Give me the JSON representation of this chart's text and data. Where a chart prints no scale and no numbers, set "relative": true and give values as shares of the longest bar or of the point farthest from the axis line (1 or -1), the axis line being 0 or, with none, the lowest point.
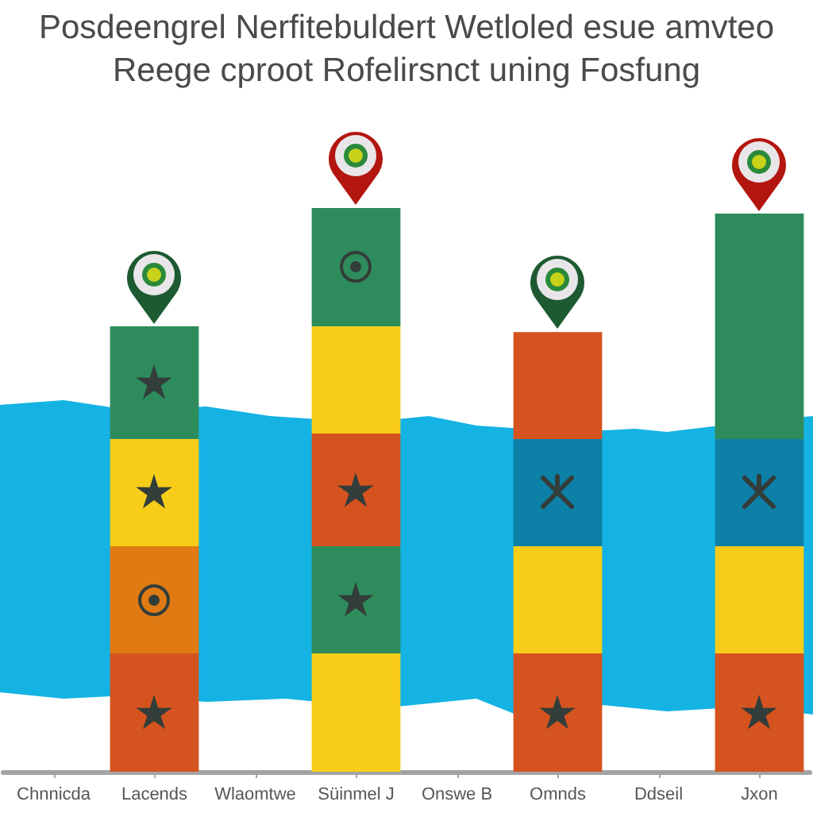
{
  "chart_data": {
    "type": "bar",
    "title": "Posdeengrel Nerfitebuldert Wetloled esue amvteo",
    "subtitle": "Reege cproot Rofelirsnct uning Fosfung",
    "categories": [
      "Chnnicda",
      "Lacends",
      "Wlaomtwe",
      "Süinmel J",
      "Onswe B",
      "Omnds",
      "Ddseil",
      "Jxon"
    ],
    "stacked": true,
    "relative": true,
    "series": [
      {
        "values": [
          null,
          0.21,
          null,
          0.21,
          null,
          0.21,
          null,
          0.21
        ],
        "colors": [
          null,
          "#d5531f",
          null,
          "#f7cd1a",
          null,
          "#d5531f",
          null,
          "#d5531f"
        ]
      },
      {
        "values": [
          null,
          0.19,
          null,
          0.19,
          null,
          0.19,
          null,
          0.19
        ],
        "colors": [
          null,
          "#e07a12",
          null,
          "#2e8c5c",
          null,
          "#f7cd1a",
          null,
          "#f7cd1a"
        ]
      },
      {
        "values": [
          null,
          0.19,
          null,
          0.2,
          null,
          0.19,
          null,
          0.19
        ],
        "colors": [
          null,
          "#f7cd1a",
          null,
          "#d5531f",
          null,
          "#0d80a8",
          null,
          "#0d80a8"
        ]
      },
      {
        "values": [
          null,
          0.2,
          null,
          0.19,
          null,
          0.19,
          null,
          0.2
        ],
        "colors": [
          null,
          "#2e8c5c",
          null,
          "#f7cd1a",
          null,
          "#d5531f",
          null,
          "#2e8c5c"
        ]
      },
      {
        "values": [
          null,
          null,
          null,
          0.21,
          null,
          null,
          null,
          0.2
        ],
        "colors": [
          null,
          null,
          null,
          "#2e8c5c",
          null,
          null,
          null,
          "#2e8c5c"
        ]
      }
    ]
  }
}
